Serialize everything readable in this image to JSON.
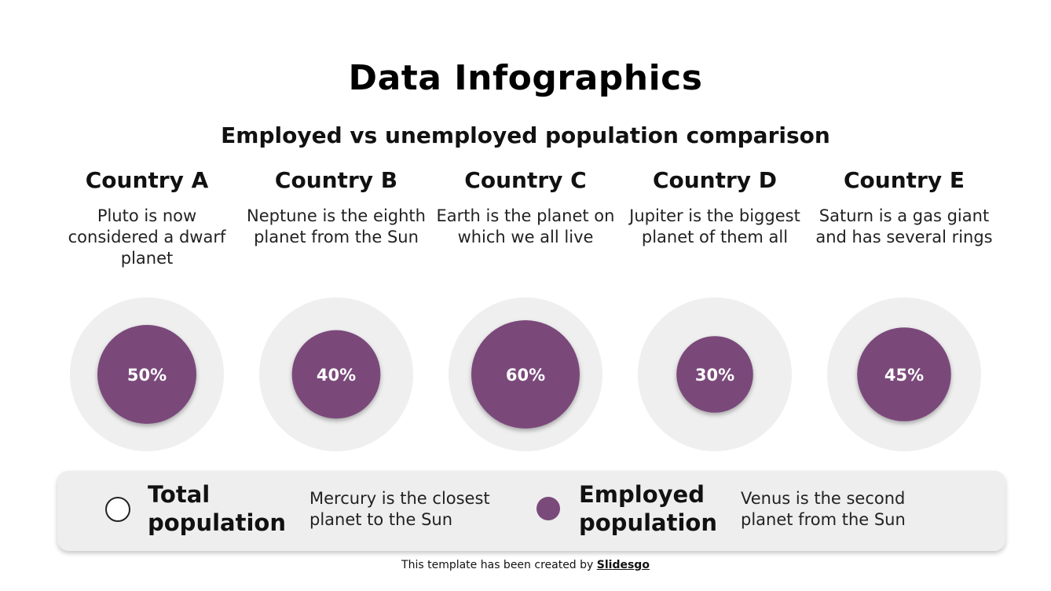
{
  "title": "Data Infographics",
  "subtitle": "Employed vs unemployed population comparison",
  "colors": {
    "employed": "#7a4a7a",
    "total": "#efefef",
    "legend_bg": "#eeeeee"
  },
  "countries": [
    {
      "name": "Country A",
      "description": "Pluto is now considered a dwarf planet"
    },
    {
      "name": "Country B",
      "description": "Neptune is the eighth planet from the Sun"
    },
    {
      "name": "Country C",
      "description": "Earth is the planet on which we all live"
    },
    {
      "name": "Country D",
      "description": "Jupiter is the biggest planet of them all"
    },
    {
      "name": "Country E",
      "description": "Saturn is a gas giant and has several rings"
    }
  ],
  "chart_data": {
    "type": "bubble",
    "title": "Employed vs unemployed population comparison",
    "categories": [
      "Country A",
      "Country B",
      "Country C",
      "Country D",
      "Country E"
    ],
    "series": [
      {
        "name": "Total population",
        "values": [
          100,
          100,
          100,
          100,
          100
        ]
      },
      {
        "name": "Employed population",
        "values": [
          50,
          40,
          60,
          30,
          45
        ]
      }
    ],
    "value_labels": [
      "50%",
      "40%",
      "60%",
      "30%",
      "45%"
    ],
    "unit": "%"
  },
  "legend": {
    "total": {
      "label": "Total population",
      "description": "Mercury is the closest planet to the Sun"
    },
    "employed": {
      "label": "Employed population",
      "description": "Venus is the second planet from the Sun"
    }
  },
  "footer": {
    "prefix": "This template has been created by ",
    "brand": "Slidesgo"
  }
}
